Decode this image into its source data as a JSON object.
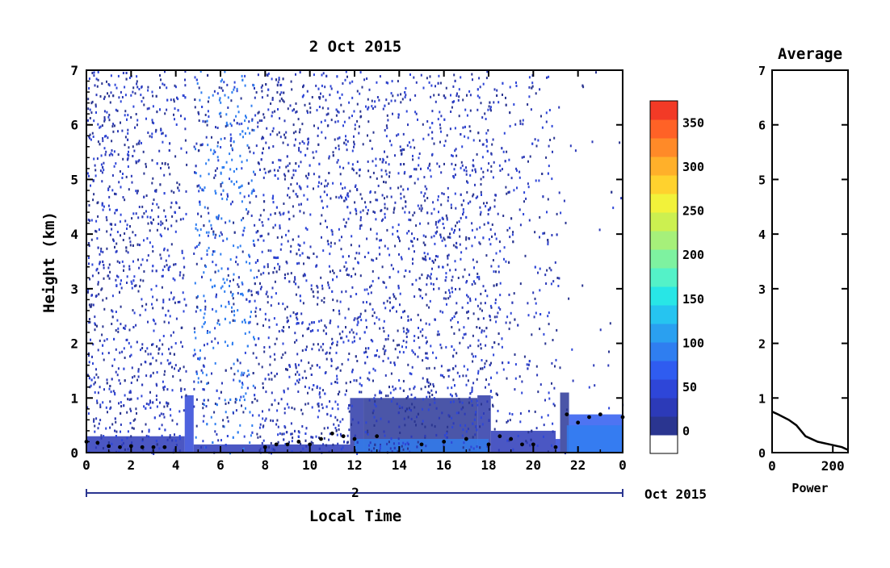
{
  "chart_data": [
    {
      "type": "heatmap",
      "title": "2 Oct 2015",
      "xlabel": "Local Time",
      "ylabel": "Height (km)",
      "x_ticks": [
        "0",
        "2",
        "4",
        "6",
        "8",
        "10",
        "12",
        "14",
        "16",
        "18",
        "20",
        "22",
        "0"
      ],
      "y_ticks": [
        "0",
        "1",
        "2",
        "3",
        "4",
        "5",
        "6",
        "7"
      ],
      "xlim": [
        0,
        24
      ],
      "ylim": [
        0,
        7
      ],
      "date_axis": {
        "day_label": "2",
        "month_label": "Oct 2015"
      },
      "colorbar": {
        "tick_labels": [
          "0",
          "50",
          "100",
          "150",
          "200",
          "250",
          "300",
          "350"
        ],
        "range": [
          -25,
          375
        ],
        "colors": [
          "#ffffff",
          "#2a3590",
          "#2c3ab8",
          "#2e46d8",
          "#2f5cf0",
          "#2f7ef0",
          "#2aa0f0",
          "#26c4f0",
          "#28e6e6",
          "#54f2c8",
          "#7ef2a0",
          "#a6f07a",
          "#ccf050",
          "#f2f23a",
          "#ffd22e",
          "#ffb02a",
          "#ff8a28",
          "#ff6226",
          "#f23a26"
        ]
      },
      "boundary_layer_height_km": [
        [
          0.0,
          0.2
        ],
        [
          0.5,
          0.18
        ],
        [
          1.0,
          0.12
        ],
        [
          1.5,
          0.1
        ],
        [
          2.0,
          0.12
        ],
        [
          2.5,
          0.1
        ],
        [
          3.0,
          0.1
        ],
        [
          3.5,
          0.1
        ],
        [
          8.0,
          0.1
        ],
        [
          8.5,
          0.15
        ],
        [
          9.0,
          0.15
        ],
        [
          9.5,
          0.2
        ],
        [
          10.0,
          0.15
        ],
        [
          10.5,
          0.25
        ],
        [
          11.0,
          0.35
        ],
        [
          11.5,
          0.3
        ],
        [
          12.0,
          0.25
        ],
        [
          13.0,
          0.3
        ],
        [
          15.0,
          0.15
        ],
        [
          16.0,
          0.2
        ],
        [
          17.0,
          0.25
        ],
        [
          18.0,
          0.15
        ],
        [
          18.5,
          0.3
        ],
        [
          19.0,
          0.25
        ],
        [
          19.5,
          0.15
        ],
        [
          20.0,
          0.15
        ],
        [
          21.0,
          0.1
        ],
        [
          21.5,
          0.7
        ],
        [
          22.0,
          0.55
        ],
        [
          22.5,
          0.65
        ],
        [
          23.0,
          0.7
        ],
        [
          24.0,
          0.65
        ]
      ]
    },
    {
      "type": "line",
      "title": "Average",
      "xlabel": "Power",
      "x_ticks": [
        "0",
        "200"
      ],
      "y_ticks": [
        "0",
        "1",
        "2",
        "3",
        "4",
        "5",
        "6",
        "7"
      ],
      "xlim": [
        0,
        250
      ],
      "ylim": [
        0,
        7
      ],
      "series": [
        {
          "x": [
            0,
            20,
            55,
            80,
            110,
            150,
            190,
            230,
            250
          ],
          "y": [
            0.75,
            0.7,
            0.6,
            0.5,
            0.3,
            0.2,
            0.15,
            0.1,
            0.05
          ]
        }
      ]
    }
  ]
}
